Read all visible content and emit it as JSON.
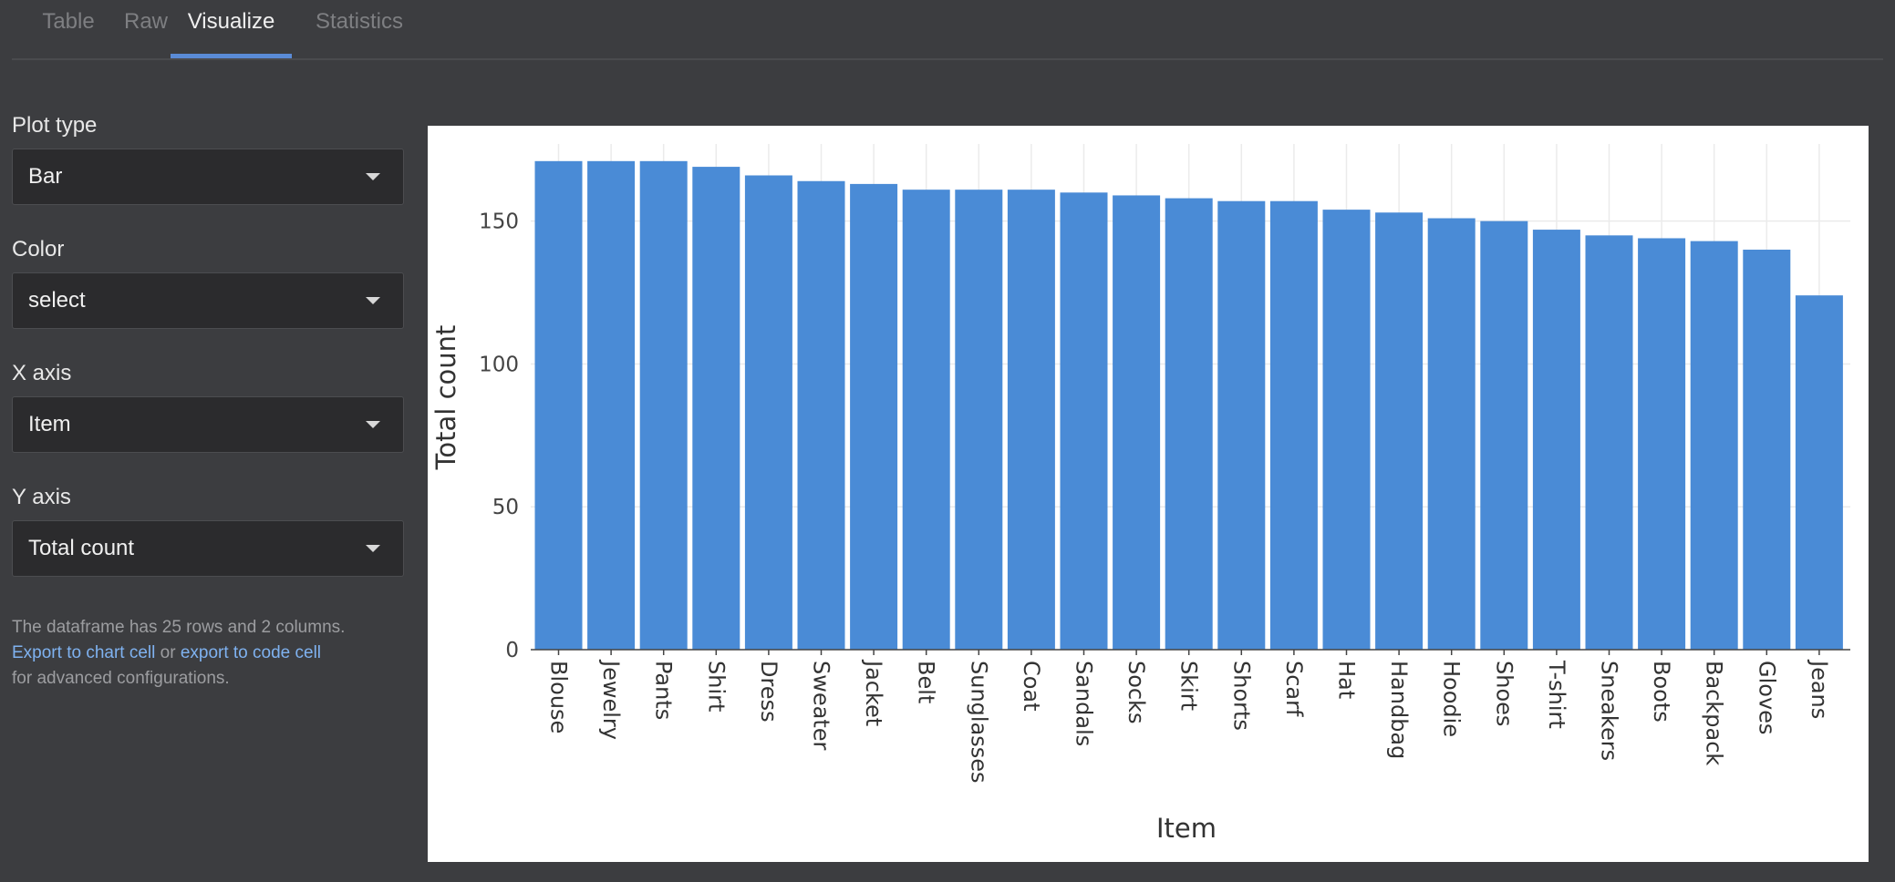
{
  "tabs": [
    {
      "label": "Table",
      "active": false
    },
    {
      "label": "Raw",
      "active": false
    },
    {
      "label": "Visualize",
      "active": true
    },
    {
      "label": "Statistics",
      "active": false
    }
  ],
  "controls": {
    "plot_type": {
      "label": "Plot type",
      "value": "Bar"
    },
    "color": {
      "label": "Color",
      "value": "select"
    },
    "x_axis": {
      "label": "X axis",
      "value": "Item"
    },
    "y_axis": {
      "label": "Y axis",
      "value": "Total count"
    }
  },
  "info": {
    "summary": "The dataframe has 25 rows and 2 columns.",
    "export_chart_link": "Export to chart cell",
    "or_text": "or",
    "export_code_link": "export to code cell",
    "suffix": "for advanced configurations."
  },
  "chart_data": {
    "type": "bar",
    "categories": [
      "Blouse",
      "Jewelry",
      "Pants",
      "Shirt",
      "Dress",
      "Sweater",
      "Jacket",
      "Belt",
      "Sunglasses",
      "Coat",
      "Sandals",
      "Socks",
      "Skirt",
      "Shorts",
      "Scarf",
      "Hat",
      "Handbag",
      "Hoodie",
      "Shoes",
      "T-shirt",
      "Sneakers",
      "Boots",
      "Backpack",
      "Gloves",
      "Jeans"
    ],
    "values": [
      171,
      171,
      171,
      169,
      166,
      164,
      163,
      161,
      161,
      161,
      160,
      159,
      158,
      157,
      157,
      154,
      153,
      151,
      150,
      147,
      145,
      144,
      143,
      140,
      124
    ],
    "xlabel": "Item",
    "ylabel": "Total count",
    "yticks": [
      0,
      50,
      100,
      150
    ],
    "ylim": [
      0,
      177
    ],
    "grid": true,
    "bar_color": "#4a8bd6"
  },
  "colors": {
    "background": "#3c3d40",
    "accent": "#5a8bd6",
    "link": "#7fb2f0"
  }
}
